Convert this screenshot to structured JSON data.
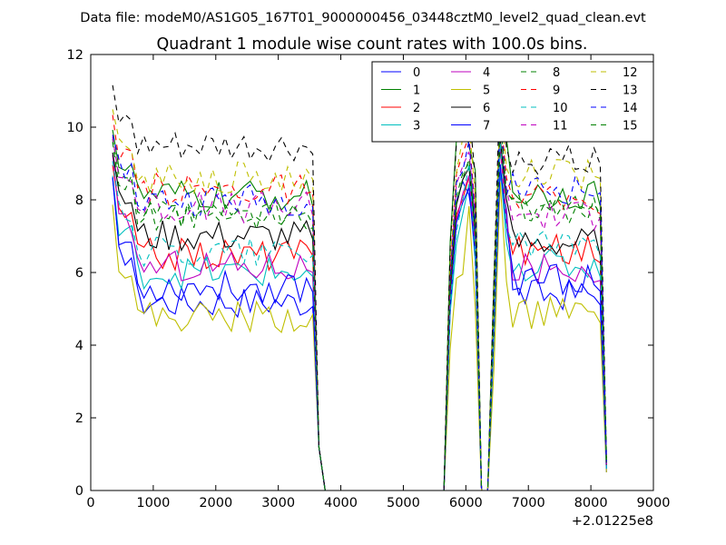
{
  "header": {
    "suptitle": "Data file: modeM0/AS1G05_167T01_9000000456_03448cztM0_level2_quad_clean.evt"
  },
  "chart_data": {
    "type": "line",
    "title": "Quadrant 1 module wise count rates with 100.0s bins.",
    "xlabel": "",
    "ylabel": "",
    "xlim": [
      0,
      9000
    ],
    "ylim": [
      0,
      12
    ],
    "x_offset_label": "+2.01225e8",
    "xticks": [
      0,
      1000,
      2000,
      3000,
      4000,
      5000,
      6000,
      7000,
      8000,
      9000
    ],
    "yticks": [
      0,
      2,
      4,
      6,
      8,
      10,
      12
    ],
    "grid": false,
    "legend_position": "top-right",
    "legend_columns": 4,
    "x": [
      350,
      450,
      550,
      650,
      750,
      850,
      950,
      1050,
      1150,
      1250,
      1350,
      1450,
      1550,
      1650,
      1750,
      1850,
      1950,
      2050,
      2150,
      2250,
      2350,
      2450,
      2550,
      2650,
      2750,
      2850,
      2950,
      3050,
      3150,
      3250,
      3350,
      3450,
      3550,
      3650,
      3750,
      3850,
      3950,
      4050,
      4150,
      4250,
      4350,
      4450,
      4550,
      4650,
      4750,
      4850,
      4950,
      5050,
      5150,
      5250,
      5350,
      5450,
      5550,
      5650,
      5750,
      5850,
      5950,
      6050,
      6150,
      6250,
      6350,
      6450,
      6550,
      6650,
      6750,
      6850,
      6950,
      7050,
      7150,
      7250,
      7350,
      7450,
      7550,
      7650,
      7750,
      7850,
      7950,
      8050,
      8150,
      8250
    ],
    "series": [
      {
        "name": "0",
        "color": "#0000ff",
        "dash": "solid",
        "plateau": 5.2,
        "peak": 8.8,
        "mid": 7.8,
        "post": 5.4,
        "end": 0.5
      },
      {
        "name": "1",
        "color": "#008000",
        "dash": "solid",
        "plateau": 8.1,
        "peak": 10.5,
        "mid": 9.8,
        "post": 8.2,
        "end": 0.8
      },
      {
        "name": "2",
        "color": "#ff0000",
        "dash": "solid",
        "plateau": 6.5,
        "peak": 9.4,
        "mid": 7.5,
        "post": 6.6,
        "end": 0.6
      },
      {
        "name": "3",
        "color": "#00bfbf",
        "dash": "solid",
        "plateau": 6.0,
        "peak": 9.0,
        "mid": 7.0,
        "post": 6.2,
        "end": 0.6
      },
      {
        "name": "4",
        "color": "#bf00bf",
        "dash": "solid",
        "plateau": 6.2,
        "peak": 9.5,
        "mid": 7.4,
        "post": 6.1,
        "end": 0.6
      },
      {
        "name": "5",
        "color": "#bfbf00",
        "dash": "solid",
        "plateau": 4.8,
        "peak": 8.4,
        "mid": 5.6,
        "post": 4.9,
        "end": 0.5
      },
      {
        "name": "6",
        "color": "#000000",
        "dash": "solid",
        "plateau": 7.0,
        "peak": 9.8,
        "mid": 7.9,
        "post": 6.8,
        "end": 0.7
      },
      {
        "name": "7",
        "color": "#0000ff",
        "dash": "solid",
        "plateau": 5.6,
        "peak": 9.0,
        "mid": 7.2,
        "post": 5.8,
        "end": 0.6
      },
      {
        "name": "8",
        "color": "#008000",
        "dash": "dashed",
        "plateau": 7.6,
        "peak": 10.0,
        "mid": 8.2,
        "post": 7.8,
        "end": 0.7
      },
      {
        "name": "9",
        "color": "#ff0000",
        "dash": "dashed",
        "plateau": 8.3,
        "peak": 10.6,
        "mid": 8.6,
        "post": 8.0,
        "end": 0.8
      },
      {
        "name": "10",
        "color": "#00bfbf",
        "dash": "dashed",
        "plateau": 6.6,
        "peak": 9.6,
        "mid": 7.3,
        "post": 6.8,
        "end": 0.6
      },
      {
        "name": "11",
        "color": "#bf00bf",
        "dash": "dashed",
        "plateau": 7.8,
        "peak": 10.2,
        "mid": 8.4,
        "post": 7.6,
        "end": 0.7
      },
      {
        "name": "12",
        "color": "#bfbf00",
        "dash": "dashed",
        "plateau": 8.6,
        "peak": 10.9,
        "mid": 9.0,
        "post": 8.7,
        "end": 0.8
      },
      {
        "name": "13",
        "color": "#000000",
        "dash": "dashed",
        "plateau": 9.4,
        "peak": 11.5,
        "mid": 9.6,
        "post": 9.1,
        "end": 0.9
      },
      {
        "name": "14",
        "color": "#0000ff",
        "dash": "dashed",
        "plateau": 8.0,
        "peak": 10.4,
        "mid": 8.3,
        "post": 8.3,
        "end": 0.8
      },
      {
        "name": "15",
        "color": "#008000",
        "dash": "dashed",
        "plateau": 7.5,
        "peak": 10.1,
        "mid": 8.0,
        "post": 7.7,
        "end": 0.7
      }
    ]
  }
}
